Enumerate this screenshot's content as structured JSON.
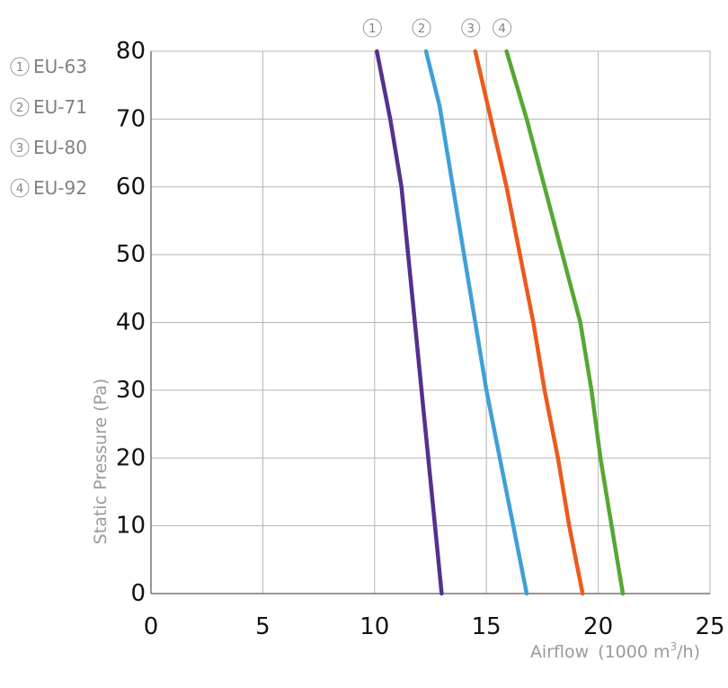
{
  "chart_data": {
    "type": "line",
    "xlabel": "Airflow",
    "xlabel_unit": "(1000 m",
    "xlabel_unit_exp": "3",
    "xlabel_unit_tail": "/h)",
    "ylabel": "Static Pressure (Pa)",
    "xlim": [
      0,
      25
    ],
    "ylim": [
      0,
      80
    ],
    "xticks": [
      "0",
      "5",
      "10",
      "15",
      "20",
      "25"
    ],
    "yticks": [
      "0",
      "10",
      "20",
      "30",
      "40",
      "50",
      "60",
      "70",
      "80"
    ],
    "grid": true,
    "legend_position": "left",
    "series": [
      {
        "marker": "1",
        "name": "EU-63",
        "color": "#55308d",
        "points": [
          [
            10.1,
            80
          ],
          [
            10.7,
            70
          ],
          [
            11.2,
            60
          ],
          [
            11.5,
            50
          ],
          [
            11.8,
            40
          ],
          [
            12.1,
            30
          ],
          [
            12.4,
            20
          ],
          [
            12.7,
            10
          ],
          [
            13.0,
            0
          ]
        ]
      },
      {
        "marker": "2",
        "name": "EU-71",
        "color": "#3fa0d8",
        "points": [
          [
            12.3,
            80
          ],
          [
            12.9,
            72
          ],
          [
            13.5,
            60
          ],
          [
            14.0,
            50
          ],
          [
            14.5,
            40
          ],
          [
            15.0,
            30
          ],
          [
            15.6,
            20
          ],
          [
            16.2,
            10
          ],
          [
            16.8,
            0
          ]
        ]
      },
      {
        "marker": "3",
        "name": "EU-80",
        "color": "#ec5a1e",
        "points": [
          [
            14.5,
            80
          ],
          [
            15.2,
            70
          ],
          [
            15.9,
            60
          ],
          [
            16.5,
            50
          ],
          [
            17.1,
            40
          ],
          [
            17.6,
            30
          ],
          [
            18.2,
            20
          ],
          [
            18.7,
            10
          ],
          [
            19.3,
            0
          ]
        ]
      },
      {
        "marker": "4",
        "name": "EU-92",
        "color": "#55a832",
        "points": [
          [
            15.9,
            80
          ],
          [
            16.8,
            70
          ],
          [
            17.6,
            60
          ],
          [
            18.4,
            50
          ],
          [
            19.2,
            40
          ],
          [
            19.7,
            30
          ],
          [
            20.1,
            20
          ],
          [
            20.6,
            10
          ],
          [
            21.1,
            0
          ]
        ]
      }
    ]
  }
}
